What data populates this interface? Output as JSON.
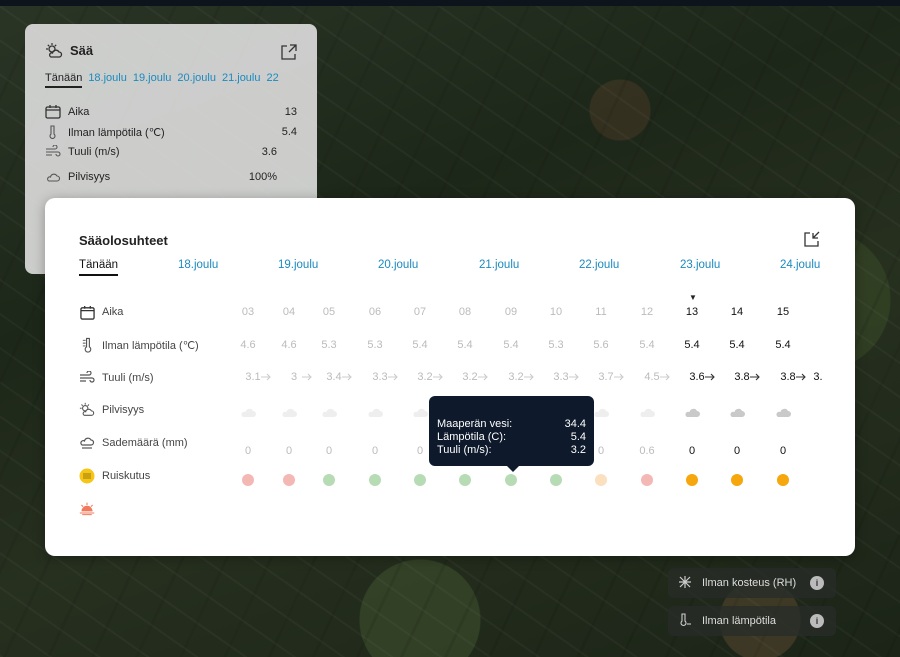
{
  "small_widget": {
    "title": "Sää",
    "tabs": [
      "Tänään",
      "18.joulu",
      "19.joulu",
      "20.joulu",
      "21.joulu",
      "22"
    ],
    "rows": [
      {
        "label": "Aika",
        "value": "13",
        "icon": "calendar-icon"
      },
      {
        "label": "Ilman lämpötila (℃)",
        "value": "5.4",
        "icon": "thermometer-icon"
      },
      {
        "label": "Tuuli (m/s)",
        "value": "3.6",
        "icon": "wind-icon"
      },
      {
        "label": "Pilvisyys",
        "value": "100%",
        "icon": "cloudy-icon"
      }
    ]
  },
  "modal": {
    "title": "Sääolosuhteet",
    "tabs": [
      "Tänään",
      "18.joulu",
      "19.joulu",
      "20.joulu",
      "21.joulu",
      "22.joulu",
      "23.joulu",
      "24.joulu"
    ],
    "row_labels": {
      "time": "Aika",
      "temp": "Ilman lämpötila (℃)",
      "wind": "Tuuli (m/s)",
      "cloud": "Pilvisyys",
      "rain": "Sademäärä (mm)",
      "spray": "Ruiskutus"
    },
    "hours": [
      "03",
      "04",
      "05",
      "06",
      "07",
      "08",
      "09",
      "10",
      "11",
      "12",
      "13",
      "14",
      "15"
    ],
    "temps": [
      "4.6",
      "4.6",
      "5.3",
      "5.3",
      "5.4",
      "5.4",
      "5.4",
      "5.3",
      "5.6",
      "5.4",
      "5.4",
      "5.4",
      "5.4"
    ],
    "winds": [
      "3.1",
      "3",
      "3.4",
      "3.3",
      "3.2",
      "3.2",
      "3.2",
      "3.3",
      "3.7",
      "4.5",
      "3.6",
      "3.8",
      "3.8"
    ],
    "rains": [
      "0",
      "0",
      "0",
      "0",
      "0",
      "",
      "",
      "",
      "0",
      "0.6",
      "0",
      "0",
      "0"
    ],
    "spray_status": [
      "poor",
      "poor",
      "good",
      "good",
      "good",
      "good",
      "good",
      "good",
      "fair",
      "poor",
      "warn",
      "warn",
      "warn"
    ],
    "wind_partial": "3.",
    "tooltip": {
      "rows": [
        {
          "label": "Maaperän vesi:",
          "value": "34.4"
        },
        {
          "label": "Lämpötila (C):",
          "value": "5.4"
        },
        {
          "label": "Tuuli (m/s):",
          "value": "3.2"
        }
      ]
    }
  },
  "colors": {
    "poor": "#f4b8b4",
    "good": "#b7dcb5",
    "fair": "#fbe0c0",
    "warn": "#f5a70d",
    "link": "#1a8ac0"
  },
  "legend": [
    {
      "label": "Ilman kosteus (RH)",
      "icon": "humidity-icon"
    },
    {
      "label": "Ilman lämpötila",
      "icon": "thermometer-icon"
    }
  ]
}
